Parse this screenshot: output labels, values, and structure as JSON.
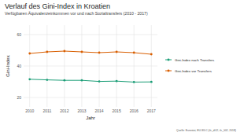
{
  "chart_data": {
    "type": "line",
    "title": "Verlauf des Gini-Index in Kroatien",
    "subtitle": "Verfügbaren Äquivalenzeinkommen vor und nach Sozialtransfers (2010 - 2017)",
    "x_label": "Jahr",
    "y_label": "Gini-Index",
    "source": "Quelle: Eurostat, EU-SILC (ilc_di12, ilc_li02, 2018)",
    "x": [
      2010,
      2011,
      2012,
      2013,
      2014,
      2015,
      2016,
      2017
    ],
    "xlim": [
      2009.65,
      2017.35
    ],
    "xticks": [
      2010,
      2011,
      2012,
      2013,
      2014,
      2015,
      2016,
      2017
    ],
    "ylim": [
      14,
      66
    ],
    "yticks": [
      20,
      40,
      60
    ],
    "grid": true,
    "legend": "right",
    "series": [
      {
        "name": "Gini-Index nach Transfers",
        "color": "#1b9e77",
        "marker": "circle",
        "values": [
          31.6,
          31.2,
          30.9,
          30.9,
          30.2,
          30.4,
          29.8,
          29.9
        ]
      },
      {
        "name": "Gini-Index vor Transfers",
        "color": "#d95f02",
        "marker": "circle",
        "values": [
          48.0,
          49.0,
          49.5,
          49.0,
          48.5,
          49.0,
          48.5,
          47.5
        ]
      }
    ]
  }
}
